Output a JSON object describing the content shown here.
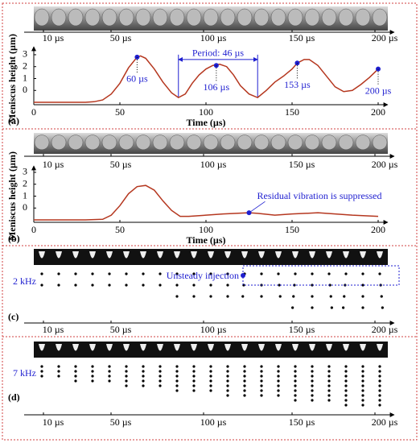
{
  "chart_data": [
    {
      "type": "line",
      "panel": "(a)",
      "xlabel": "Time (µs)",
      "ylabel": "Meniscus height (µm)",
      "xlim": [
        0,
        200
      ],
      "xticks": [
        0,
        50,
        100,
        150,
        200
      ],
      "ylim": [
        -1.2,
        3.2
      ],
      "yticks": [
        0,
        1,
        2,
        3
      ],
      "x": [
        0,
        5,
        10,
        15,
        20,
        25,
        30,
        35,
        40,
        45,
        50,
        55,
        60,
        62,
        65,
        70,
        75,
        80,
        84,
        88,
        92,
        96,
        100,
        104,
        108,
        112,
        116,
        120,
        125,
        130,
        135,
        140,
        145,
        150,
        153,
        157,
        160,
        165,
        170,
        175,
        180,
        185,
        190,
        195,
        200
      ],
      "series": [
        {
          "color": "#b5371f",
          "values": [
            -1,
            -1,
            -1,
            -1,
            -1,
            -1,
            -1,
            -0.95,
            -0.8,
            -0.3,
            0.6,
            1.9,
            2.8,
            2.9,
            2.7,
            1.8,
            0.7,
            -0.2,
            -0.6,
            -0.3,
            0.6,
            1.3,
            1.8,
            2.1,
            2.2,
            2.0,
            1.3,
            0.4,
            -0.3,
            -0.6,
            0.0,
            0.7,
            1.2,
            1.8,
            2.3,
            2.6,
            2.6,
            2.1,
            1.2,
            0.3,
            -0.1,
            0.0,
            0.5,
            1.1,
            1.8
          ]
        }
      ],
      "points": {
        "color": "#1f1fd0",
        "x": [
          60,
          106,
          153,
          200
        ],
        "values": [
          2.8,
          2.1,
          2.3,
          1.8
        ],
        "labels": [
          "60 µs",
          "106 µs",
          "153 µs",
          "200 µs"
        ]
      },
      "period": {
        "label": "Period: 46 µs",
        "x": [
          84,
          130
        ],
        "value": 2.6
      }
    },
    {
      "type": "line",
      "panel": "(b)",
      "xlabel": "Time (µs)",
      "ylabel": "Meniscus height (µm)",
      "xlim": [
        0,
        200
      ],
      "xticks": [
        0,
        50,
        100,
        150,
        200
      ],
      "ylim": [
        -1.2,
        3.2
      ],
      "yticks": [
        0,
        1,
        2,
        3
      ],
      "x": [
        0,
        10,
        20,
        30,
        40,
        45,
        50,
        55,
        60,
        65,
        70,
        75,
        80,
        85,
        90,
        100,
        110,
        125,
        130,
        140,
        150,
        165,
        175,
        185,
        200
      ],
      "series": [
        {
          "color": "#b5371f",
          "values": [
            -1,
            -1,
            -1,
            -1,
            -0.95,
            -0.6,
            0.2,
            1.2,
            1.8,
            1.9,
            1.5,
            0.6,
            -0.2,
            -0.7,
            -0.7,
            -0.6,
            -0.5,
            -0.4,
            -0.45,
            -0.6,
            -0.5,
            -0.4,
            -0.5,
            -0.6,
            -0.7
          ]
        }
      ],
      "points": {
        "color": "#1f1fd0",
        "x": [
          125
        ],
        "values": [
          -0.4
        ],
        "labels": [
          "Residual vibration is suppressed"
        ]
      }
    }
  ],
  "strips": [
    {
      "labels": [
        "10 µs",
        "50 µs",
        "100 µs",
        "150 µs",
        "200 µs"
      ]
    },
    {
      "labels": [
        "10 µs",
        "50 µs",
        "100 µs",
        "150 µs",
        "200 µs"
      ]
    },
    {
      "labels": [
        "10 µs",
        "50 µs",
        "100 µs",
        "150 µs",
        "200 µs"
      ]
    },
    {
      "labels": [
        "10 µs",
        "50 µs",
        "100 µs",
        "150 µs",
        "200 µs"
      ]
    }
  ],
  "injection": [
    {
      "panel": "(c)",
      "frequency": "2 kHz",
      "annotation": "Unsteady injection"
    },
    {
      "panel": "(d)",
      "frequency": "7 kHz"
    }
  ]
}
